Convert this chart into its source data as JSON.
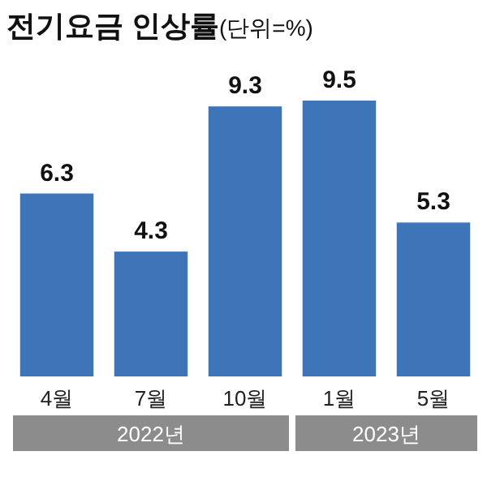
{
  "chart_data": {
    "type": "bar",
    "title": "전기요금 인상률",
    "subtitle": "(단위=%)",
    "categories": [
      "4월",
      "7월",
      "10월",
      "1월",
      "5월"
    ],
    "values": [
      6.3,
      4.3,
      9.3,
      9.5,
      5.3
    ],
    "color": "#3e74b8",
    "data_labels": true,
    "annotations": [
      "2022년",
      "2023년"
    ]
  }
}
